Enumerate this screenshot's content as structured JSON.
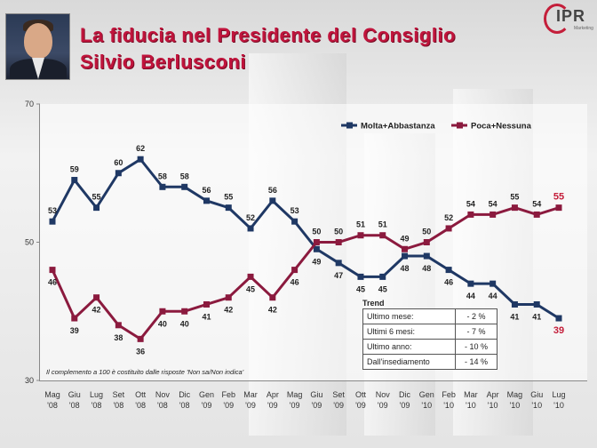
{
  "header": {
    "title_line1": "La fiducia nel Presidente del Consiglio",
    "title_line2": "Silvio Berlusconi",
    "logo_text": "IPR",
    "logo_sub": "Marketing"
  },
  "chart_data": {
    "type": "line",
    "ylim": [
      30,
      70
    ],
    "yticks": [
      30,
      50,
      70
    ],
    "grid": false,
    "legend_position": "top-right",
    "categories": [
      [
        "Mag",
        "'08"
      ],
      [
        "Giu",
        "'08"
      ],
      [
        "Lug",
        "'08"
      ],
      [
        "Set",
        "'08"
      ],
      [
        "Ott",
        "'08"
      ],
      [
        "Nov",
        "'08"
      ],
      [
        "Dic",
        "'08"
      ],
      [
        "Gen",
        "'09"
      ],
      [
        "Feb",
        "'09"
      ],
      [
        "Mar",
        "'09"
      ],
      [
        "Apr",
        "'09"
      ],
      [
        "Mag",
        "'09"
      ],
      [
        "Giu",
        "'09"
      ],
      [
        "Set",
        "'09"
      ],
      [
        "Ott",
        "'09"
      ],
      [
        "Nov",
        "'09"
      ],
      [
        "Dic",
        "'09"
      ],
      [
        "Gen",
        "'10"
      ],
      [
        "Feb",
        "'10"
      ],
      [
        "Mar",
        "'10"
      ],
      [
        "Apr",
        "'10"
      ],
      [
        "Mag",
        "'10"
      ],
      [
        "Giu",
        "'10"
      ],
      [
        "Lug",
        "'10"
      ]
    ],
    "series": [
      {
        "name": "Molta+Abbastanza",
        "color": "#1f3864",
        "values": [
          53,
          59,
          55,
          60,
          62,
          58,
          58,
          56,
          55,
          52,
          56,
          53,
          49,
          47,
          45,
          45,
          48,
          48,
          46,
          44,
          44,
          41,
          41,
          39
        ]
      },
      {
        "name": "Poca+Nessuna",
        "color": "#8b1a3e",
        "values": [
          46,
          39,
          42,
          38,
          36,
          40,
          40,
          41,
          42,
          45,
          42,
          46,
          50,
          50,
          51,
          51,
          49,
          50,
          52,
          54,
          54,
          55,
          54,
          55
        ]
      }
    ],
    "last_label_color": "#c41e3a"
  },
  "trend": {
    "title": "Trend",
    "rows": [
      {
        "label": "Ultimo mese:",
        "value": "- 2 %"
      },
      {
        "label": "Ultimi 6 mesi:",
        "value": "- 7 %"
      },
      {
        "label": "Ultimo anno:",
        "value": "- 10 %"
      },
      {
        "label": "Dall'insediamento",
        "value": "- 14 %"
      }
    ]
  },
  "note": "Il complemento a 100 è costituito dalle risposte 'Non sa/Non indica'"
}
